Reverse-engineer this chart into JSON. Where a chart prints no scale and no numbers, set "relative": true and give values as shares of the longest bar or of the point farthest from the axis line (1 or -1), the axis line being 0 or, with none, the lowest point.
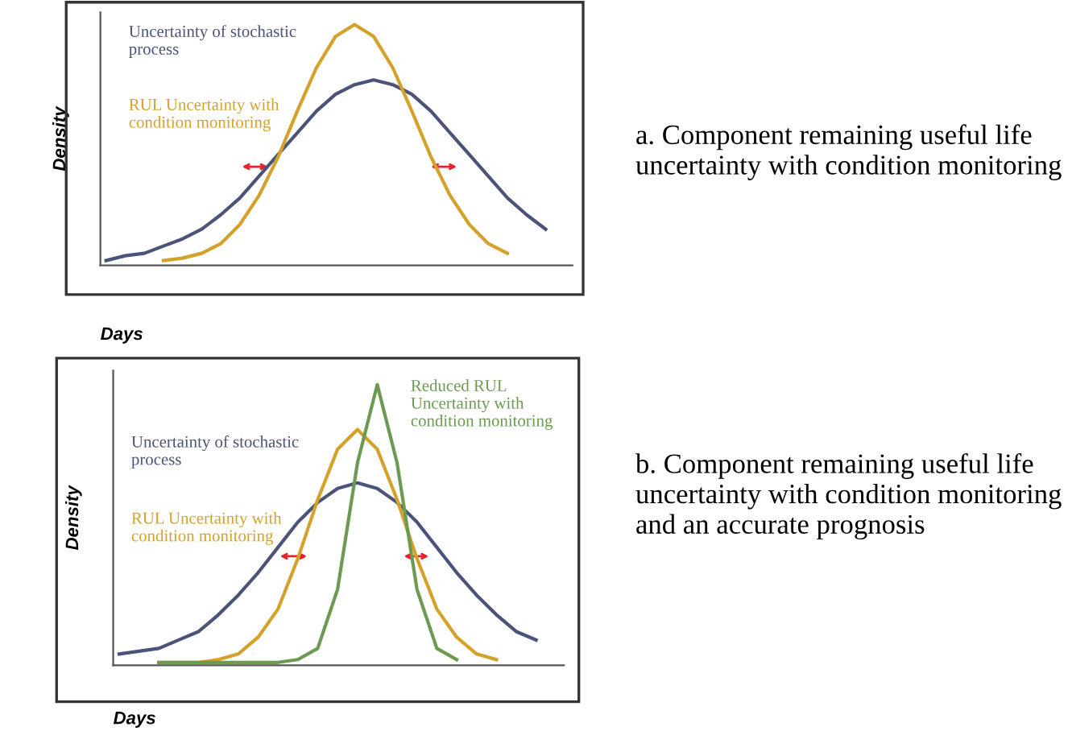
{
  "chart_data": [
    {
      "type": "line",
      "relative": true,
      "xlabel": "Days",
      "ylabel": "Density",
      "categories": [
        null,
        null,
        null,
        null,
        null,
        null,
        null,
        null,
        null,
        null,
        null,
        null,
        null,
        null,
        null,
        null,
        null,
        null,
        null,
        null,
        null,
        null,
        null,
        null,
        null
      ],
      "series": [
        {
          "name": "Uncertainty of stochastic process",
          "color": "#4b5478",
          "values": [
            0.02,
            0.04,
            0.05,
            0.08,
            0.11,
            0.15,
            0.21,
            0.28,
            0.37,
            0.46,
            0.55,
            0.64,
            0.71,
            0.75,
            0.77,
            0.75,
            0.71,
            0.64,
            0.55,
            0.46,
            0.37,
            0.28,
            0.21,
            0.15,
            null
          ]
        },
        {
          "name": "RUL Uncertainty with condition monitoring",
          "color": "#d4a22a",
          "values": [
            null,
            null,
            null,
            0.02,
            0.03,
            0.05,
            0.09,
            0.17,
            0.29,
            0.45,
            0.64,
            0.82,
            0.95,
            1.0,
            0.95,
            0.82,
            0.64,
            0.45,
            0.29,
            0.17,
            0.09,
            0.05,
            null,
            null,
            null
          ]
        }
      ],
      "annotations": [
        "a. Component remaining useful life uncertainty with condition monitoring"
      ]
    },
    {
      "type": "line",
      "relative": true,
      "xlabel": "Days",
      "ylabel": "Density",
      "categories": [
        null,
        null,
        null,
        null,
        null,
        null,
        null,
        null,
        null,
        null,
        null,
        null,
        null,
        null,
        null,
        null,
        null,
        null,
        null,
        null,
        null,
        null,
        null
      ],
      "series": [
        {
          "name": "Uncertainty of stochastic process",
          "color": "#4b5478",
          "values": [
            0.04,
            0.05,
            0.06,
            0.09,
            0.12,
            0.18,
            0.25,
            0.33,
            0.42,
            0.51,
            0.58,
            0.63,
            0.65,
            0.63,
            0.58,
            0.51,
            0.42,
            0.33,
            0.25,
            0.18,
            0.12,
            0.09,
            null
          ]
        },
        {
          "name": "RUL Uncertainty with condition monitoring",
          "color": "#d4a22a",
          "values": [
            null,
            null,
            0.01,
            0.01,
            0.01,
            0.02,
            0.04,
            0.1,
            0.2,
            0.38,
            0.59,
            0.77,
            0.84,
            0.77,
            0.59,
            0.38,
            0.2,
            0.1,
            0.04,
            0.02,
            null,
            null,
            null
          ]
        },
        {
          "name": "Reduced RUL Uncertainty with condition monitoring",
          "color": "#6b9a50",
          "values": [
            null,
            null,
            0.01,
            0.01,
            0.01,
            0.01,
            0.01,
            0.01,
            0.01,
            0.02,
            0.06,
            0.27,
            0.72,
            1.0,
            0.72,
            0.27,
            0.06,
            0.02,
            null,
            null,
            null,
            null,
            null
          ]
        }
      ],
      "annotations": [
        "b. Component remaining useful life uncertainty with condition monitoring and an accurate prognosis"
      ]
    }
  ]
}
